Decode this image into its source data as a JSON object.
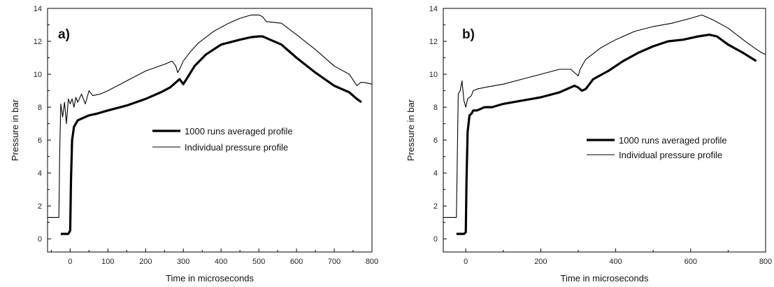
{
  "chart_data": [
    {
      "type": "line",
      "panel_label": "a)",
      "xlabel": "Time in microseconds",
      "ylabel": "Pressure in bar",
      "xlim": [
        -60,
        800
      ],
      "ylim": [
        -0.8,
        14
      ],
      "xticks": [
        0,
        100,
        200,
        300,
        400,
        500,
        600,
        700,
        800
      ],
      "yticks": [
        0,
        2,
        4,
        6,
        8,
        10,
        12,
        14
      ],
      "legend_position": "center-right",
      "series": [
        {
          "name": "1000 runs averaged profile",
          "line_weight": "thick",
          "color": "#000000",
          "x": [
            -25,
            -5,
            0,
            2,
            5,
            10,
            15,
            20,
            30,
            50,
            70,
            100,
            150,
            200,
            240,
            265,
            280,
            290,
            300,
            330,
            360,
            400,
            450,
            480,
            500,
            510,
            520,
            560,
            600,
            650,
            700,
            740,
            760,
            772
          ],
          "y": [
            0.3,
            0.3,
            0.5,
            3.5,
            6.0,
            6.8,
            7.0,
            7.2,
            7.3,
            7.5,
            7.6,
            7.8,
            8.1,
            8.5,
            8.9,
            9.2,
            9.5,
            9.7,
            9.4,
            10.5,
            11.2,
            11.8,
            12.1,
            12.25,
            12.3,
            12.3,
            12.2,
            11.8,
            11.0,
            10.1,
            9.3,
            8.9,
            8.5,
            8.3
          ]
        },
        {
          "name": "Individual pressure profile",
          "line_weight": "thin",
          "color": "#000000",
          "x": [
            -60,
            -30,
            -28,
            -25,
            -20,
            -15,
            -10,
            -5,
            0,
            5,
            10,
            15,
            20,
            30,
            40,
            50,
            60,
            80,
            100,
            150,
            200,
            250,
            270,
            280,
            285,
            290,
            300,
            320,
            340,
            380,
            420,
            450,
            480,
            500,
            510,
            520,
            560,
            600,
            650,
            700,
            740,
            760,
            770,
            780,
            800
          ],
          "y": [
            1.3,
            1.3,
            5.0,
            8.2,
            7.4,
            8.3,
            7.0,
            8.5,
            8.2,
            8.5,
            8.0,
            8.6,
            8.3,
            8.8,
            8.2,
            9.0,
            8.7,
            8.8,
            9.0,
            9.6,
            10.2,
            10.6,
            10.8,
            10.5,
            10.1,
            10.3,
            10.8,
            11.4,
            11.9,
            12.6,
            13.1,
            13.4,
            13.6,
            13.6,
            13.5,
            13.2,
            13.1,
            12.4,
            11.5,
            10.5,
            10.0,
            9.3,
            9.5,
            9.5,
            9.4
          ]
        }
      ]
    },
    {
      "type": "line",
      "panel_label": "b)",
      "xlabel": "Time in microseconds",
      "ylabel": "Pressure in bar",
      "xlim": [
        -60,
        800
      ],
      "ylim": [
        -0.8,
        14
      ],
      "xticks": [
        0,
        200,
        400,
        600,
        800
      ],
      "yticks": [
        0,
        2,
        4,
        6,
        8,
        10,
        12,
        14
      ],
      "legend_position": "center-right",
      "series": [
        {
          "name": "1000 runs averaged profile",
          "line_weight": "thick",
          "color": "#000000",
          "x": [
            -25,
            -5,
            0,
            2,
            5,
            10,
            15,
            20,
            30,
            50,
            70,
            100,
            150,
            200,
            250,
            290,
            300,
            310,
            320,
            340,
            380,
            420,
            460,
            500,
            540,
            580,
            620,
            650,
            670,
            700,
            740,
            775
          ],
          "y": [
            0.3,
            0.3,
            0.4,
            3.5,
            6.5,
            7.5,
            7.6,
            7.8,
            7.8,
            8.0,
            8.0,
            8.2,
            8.4,
            8.6,
            8.9,
            9.3,
            9.2,
            9.0,
            9.1,
            9.7,
            10.2,
            10.8,
            11.3,
            11.7,
            12.0,
            12.1,
            12.3,
            12.4,
            12.3,
            11.8,
            11.3,
            10.8
          ]
        },
        {
          "name": "Individual pressure profile",
          "line_weight": "thin",
          "color": "#000000",
          "x": [
            -60,
            -25,
            -22,
            -20,
            -15,
            -10,
            -5,
            0,
            5,
            10,
            15,
            20,
            30,
            50,
            100,
            150,
            200,
            250,
            280,
            295,
            300,
            305,
            320,
            360,
            400,
            450,
            500,
            550,
            600,
            630,
            640,
            660,
            700,
            740,
            770,
            790,
            800
          ],
          "y": [
            1.3,
            1.3,
            6.0,
            8.8,
            9.0,
            9.6,
            8.4,
            8.0,
            8.5,
            8.6,
            8.7,
            9.0,
            9.1,
            9.2,
            9.4,
            9.7,
            10.0,
            10.3,
            10.3,
            10.0,
            9.9,
            10.3,
            10.9,
            11.6,
            12.1,
            12.6,
            12.9,
            13.1,
            13.4,
            13.6,
            13.5,
            13.3,
            12.8,
            12.1,
            11.6,
            11.3,
            11.2
          ]
        }
      ]
    }
  ]
}
